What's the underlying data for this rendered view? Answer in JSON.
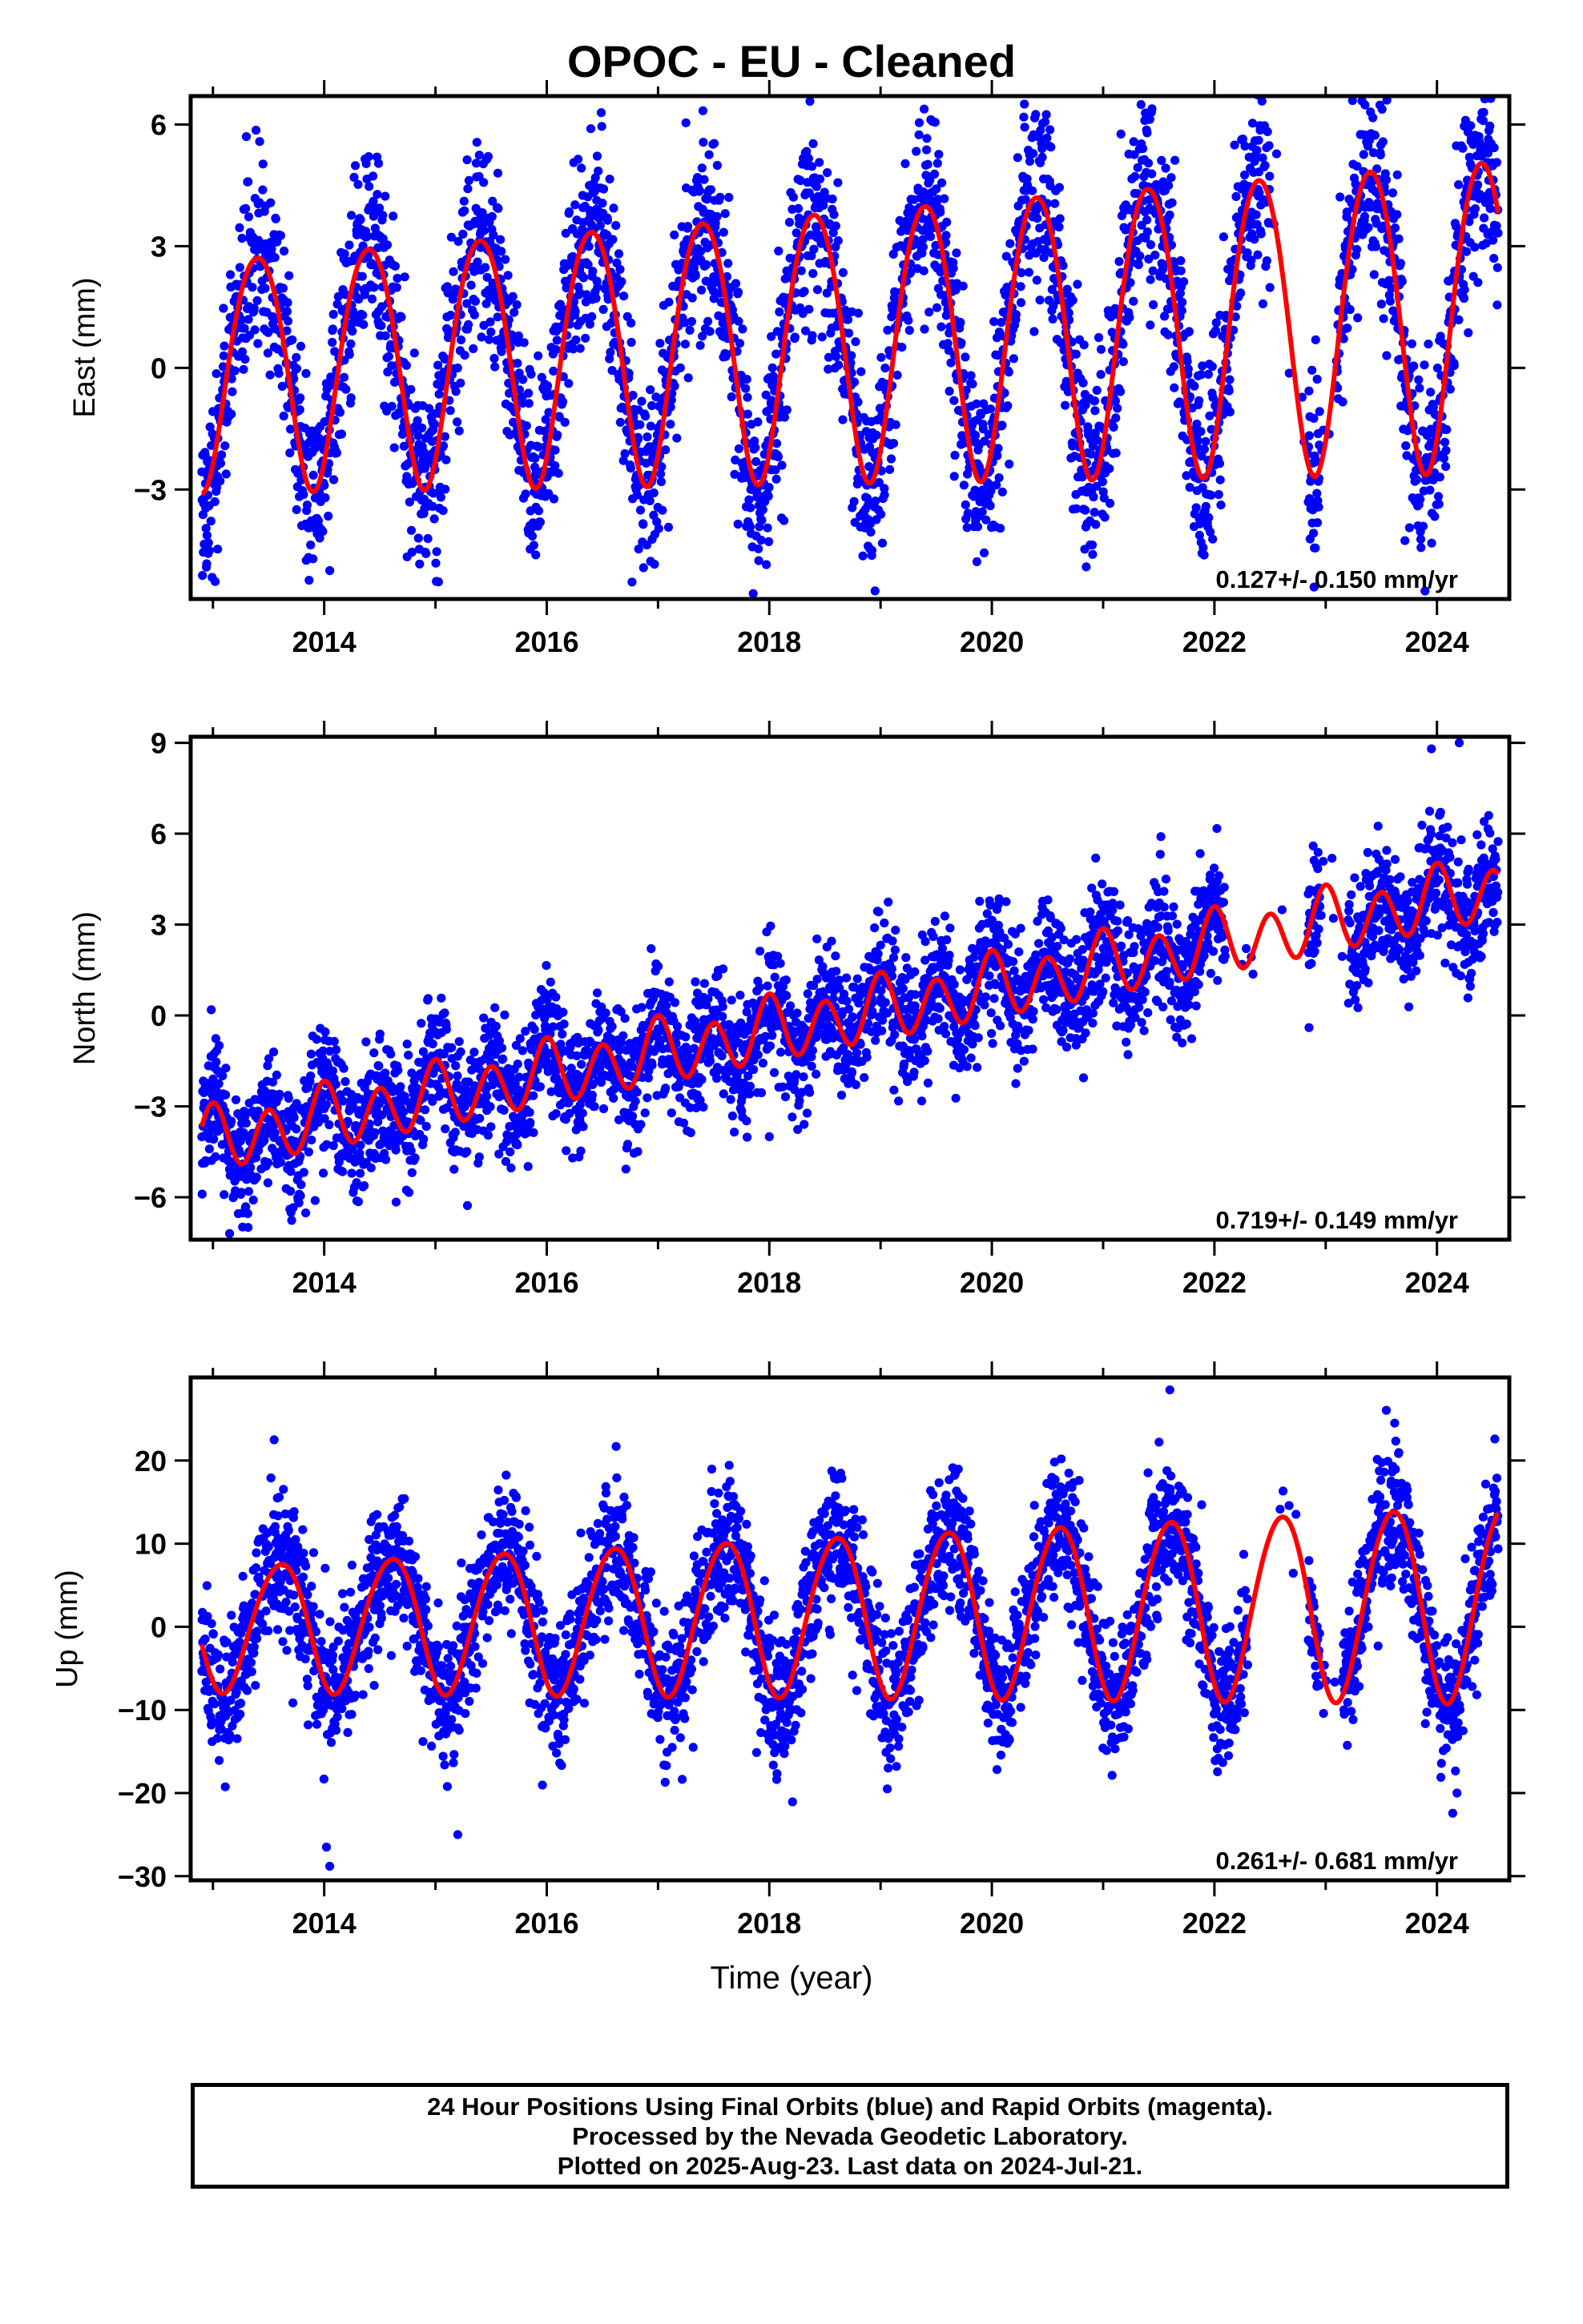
{
  "title": "OPOC  - EU - Cleaned",
  "xlabel": "Time (year)",
  "footer": {
    "line1": "24 Hour Positions Using Final Orbits (blue) and Rapid Orbits (magenta).",
    "line2": "Processed by the Nevada Geodetic Laboratory.",
    "line3": "Plotted on 2025-Aug-23. Last data on 2024-Jul-21."
  },
  "colors": {
    "observations": "#0000ff",
    "model": "#ff0000",
    "axes": "#000000"
  },
  "chart_data": [
    {
      "type": "scatter",
      "ylabel": "East (mm)",
      "rate_label": "0.127+/- 0.150 mm/yr",
      "xlim": [
        2012.8,
        2024.65
      ],
      "ylim": [
        -5.7,
        6.7
      ],
      "x_ticks": [
        2014,
        2016,
        2018,
        2020,
        2022,
        2024
      ],
      "y_ticks": [
        -3,
        0,
        3,
        6
      ],
      "y_tick_labels": [
        "−3",
        "0",
        "3",
        "6"
      ],
      "x_start": 2012.9,
      "x_end": 2024.55,
      "gaps": [
        [
          2022.5,
          2022.84
        ],
        [
          2022.95,
          2023.1
        ]
      ],
      "series": [
        {
          "trend": {
            "ref_year": 2012.9,
            "ref_value": 0.0,
            "slope": 0.127
          },
          "annual": {
            "amplitude": 2.85,
            "peak": 0.4
          },
          "semiannual": {
            "amplitude": 0.25,
            "peak": 0.15
          },
          "amplitude_trend": 0.03,
          "scatter_sigma": 1.2,
          "outliers": [
            [
              2013.3,
              5.7
            ],
            [
              2023.55,
              6.6
            ],
            [
              2024.42,
              6.3
            ],
            [
              2018.95,
              -5.5
            ],
            [
              2014.05,
              -5.0
            ]
          ]
        }
      ]
    },
    {
      "type": "scatter",
      "ylabel": "North (mm)",
      "rate_label": "0.719+/- 0.149 mm/yr",
      "xlim": [
        2012.8,
        2024.65
      ],
      "ylim": [
        -7.4,
        9.2
      ],
      "x_ticks": [
        2014,
        2016,
        2018,
        2020,
        2022,
        2024
      ],
      "y_ticks": [
        -6,
        -3,
        0,
        3,
        6,
        9
      ],
      "y_tick_labels": [
        "−6",
        "−3",
        "0",
        "3",
        "6",
        "9"
      ],
      "x_start": 2012.9,
      "x_end": 2024.55,
      "gaps": [
        [
          2022.1,
          2022.84
        ],
        [
          2022.95,
          2023.2
        ]
      ],
      "series": [
        {
          "trend": {
            "ref_year": 2012.9,
            "ref_value": -4.2,
            "slope": 0.719
          },
          "annual": {
            "amplitude": 0.3,
            "peak": 0.0
          },
          "semiannual": {
            "amplitude": 0.95,
            "peak": 0.0
          },
          "amplitude_trend": 0.0,
          "scatter_sigma": 1.05,
          "outliers": [
            [
              2013.15,
              -7.2
            ],
            [
              2023.95,
              8.8
            ],
            [
              2024.2,
              9.0
            ],
            [
              2018.0,
              -4.0
            ],
            [
              2022.85,
              -0.4
            ]
          ]
        }
      ]
    },
    {
      "type": "scatter",
      "ylabel": "Up (mm)",
      "rate_label": "0.261+/- 0.681 mm/yr",
      "xlim": [
        2012.8,
        2024.65
      ],
      "ylim": [
        -30.5,
        30.0
      ],
      "x_ticks": [
        2014,
        2016,
        2018,
        2020,
        2022,
        2024
      ],
      "y_ticks": [
        -30,
        -20,
        -10,
        0,
        10,
        20
      ],
      "y_tick_labels": [
        "−30",
        "−20",
        "−10",
        "0",
        "10",
        "20"
      ],
      "x_start": 2012.9,
      "x_end": 2024.55,
      "gaps": [
        [
          2022.3,
          2022.84
        ],
        [
          2022.95,
          2023.15
        ]
      ],
      "series": [
        {
          "trend": {
            "ref_year": 2012.9,
            "ref_value": 0.0,
            "slope": 0.261
          },
          "annual": {
            "amplitude": 7.5,
            "peak": 0.6
          },
          "semiannual": {
            "amplitude": 0.6,
            "peak": 0.3
          },
          "amplitude_trend": 0.05,
          "scatter_sigma": 4.2,
          "outliers": [
            [
              2021.6,
              28.5
            ],
            [
              2014.05,
              -28.8
            ],
            [
              2014.02,
              -26.5
            ],
            [
              2015.2,
              -25.0
            ],
            [
              2023.62,
              24.5
            ],
            [
              2013.55,
              22.5
            ]
          ]
        }
      ]
    }
  ]
}
